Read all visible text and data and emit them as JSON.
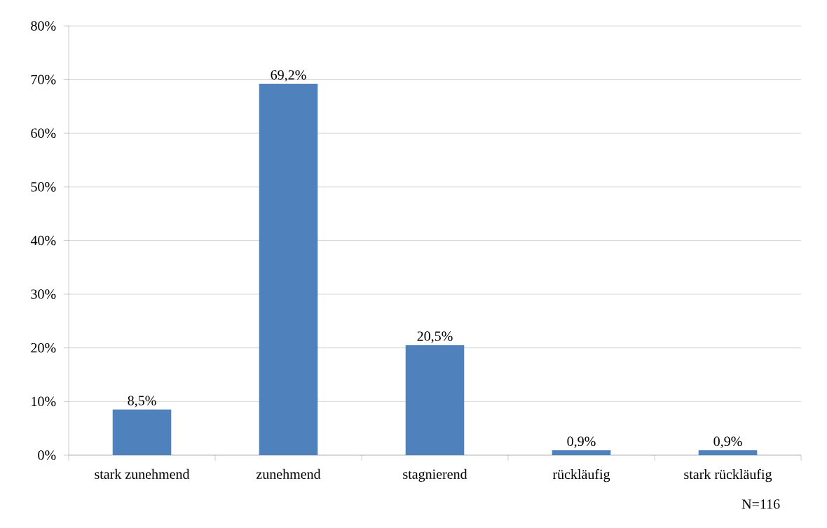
{
  "chart_data": {
    "type": "bar",
    "categories": [
      "stark zunehmend",
      "zunehmend",
      "stagnierend",
      "rückläufig",
      "stark rückläufig"
    ],
    "values": [
      8.5,
      69.2,
      20.5,
      0.9,
      0.9
    ],
    "value_labels": [
      "8,5%",
      "69,2%",
      "20,5%",
      "0,9%",
      "0,9%"
    ],
    "color": "#4f81bd",
    "ylim": [
      0,
      80
    ],
    "yticks": [
      {
        "value": 0,
        "label": "0%"
      },
      {
        "value": 10,
        "label": "10%"
      },
      {
        "value": 20,
        "label": "20%"
      },
      {
        "value": 30,
        "label": "30%"
      },
      {
        "value": 40,
        "label": "40%"
      },
      {
        "value": 50,
        "label": "50%"
      },
      {
        "value": 60,
        "label": "60%"
      },
      {
        "value": 70,
        "label": "70%"
      },
      {
        "value": 80,
        "label": "80%"
      }
    ],
    "grid": "y",
    "annotations": [
      "N=116"
    ]
  }
}
